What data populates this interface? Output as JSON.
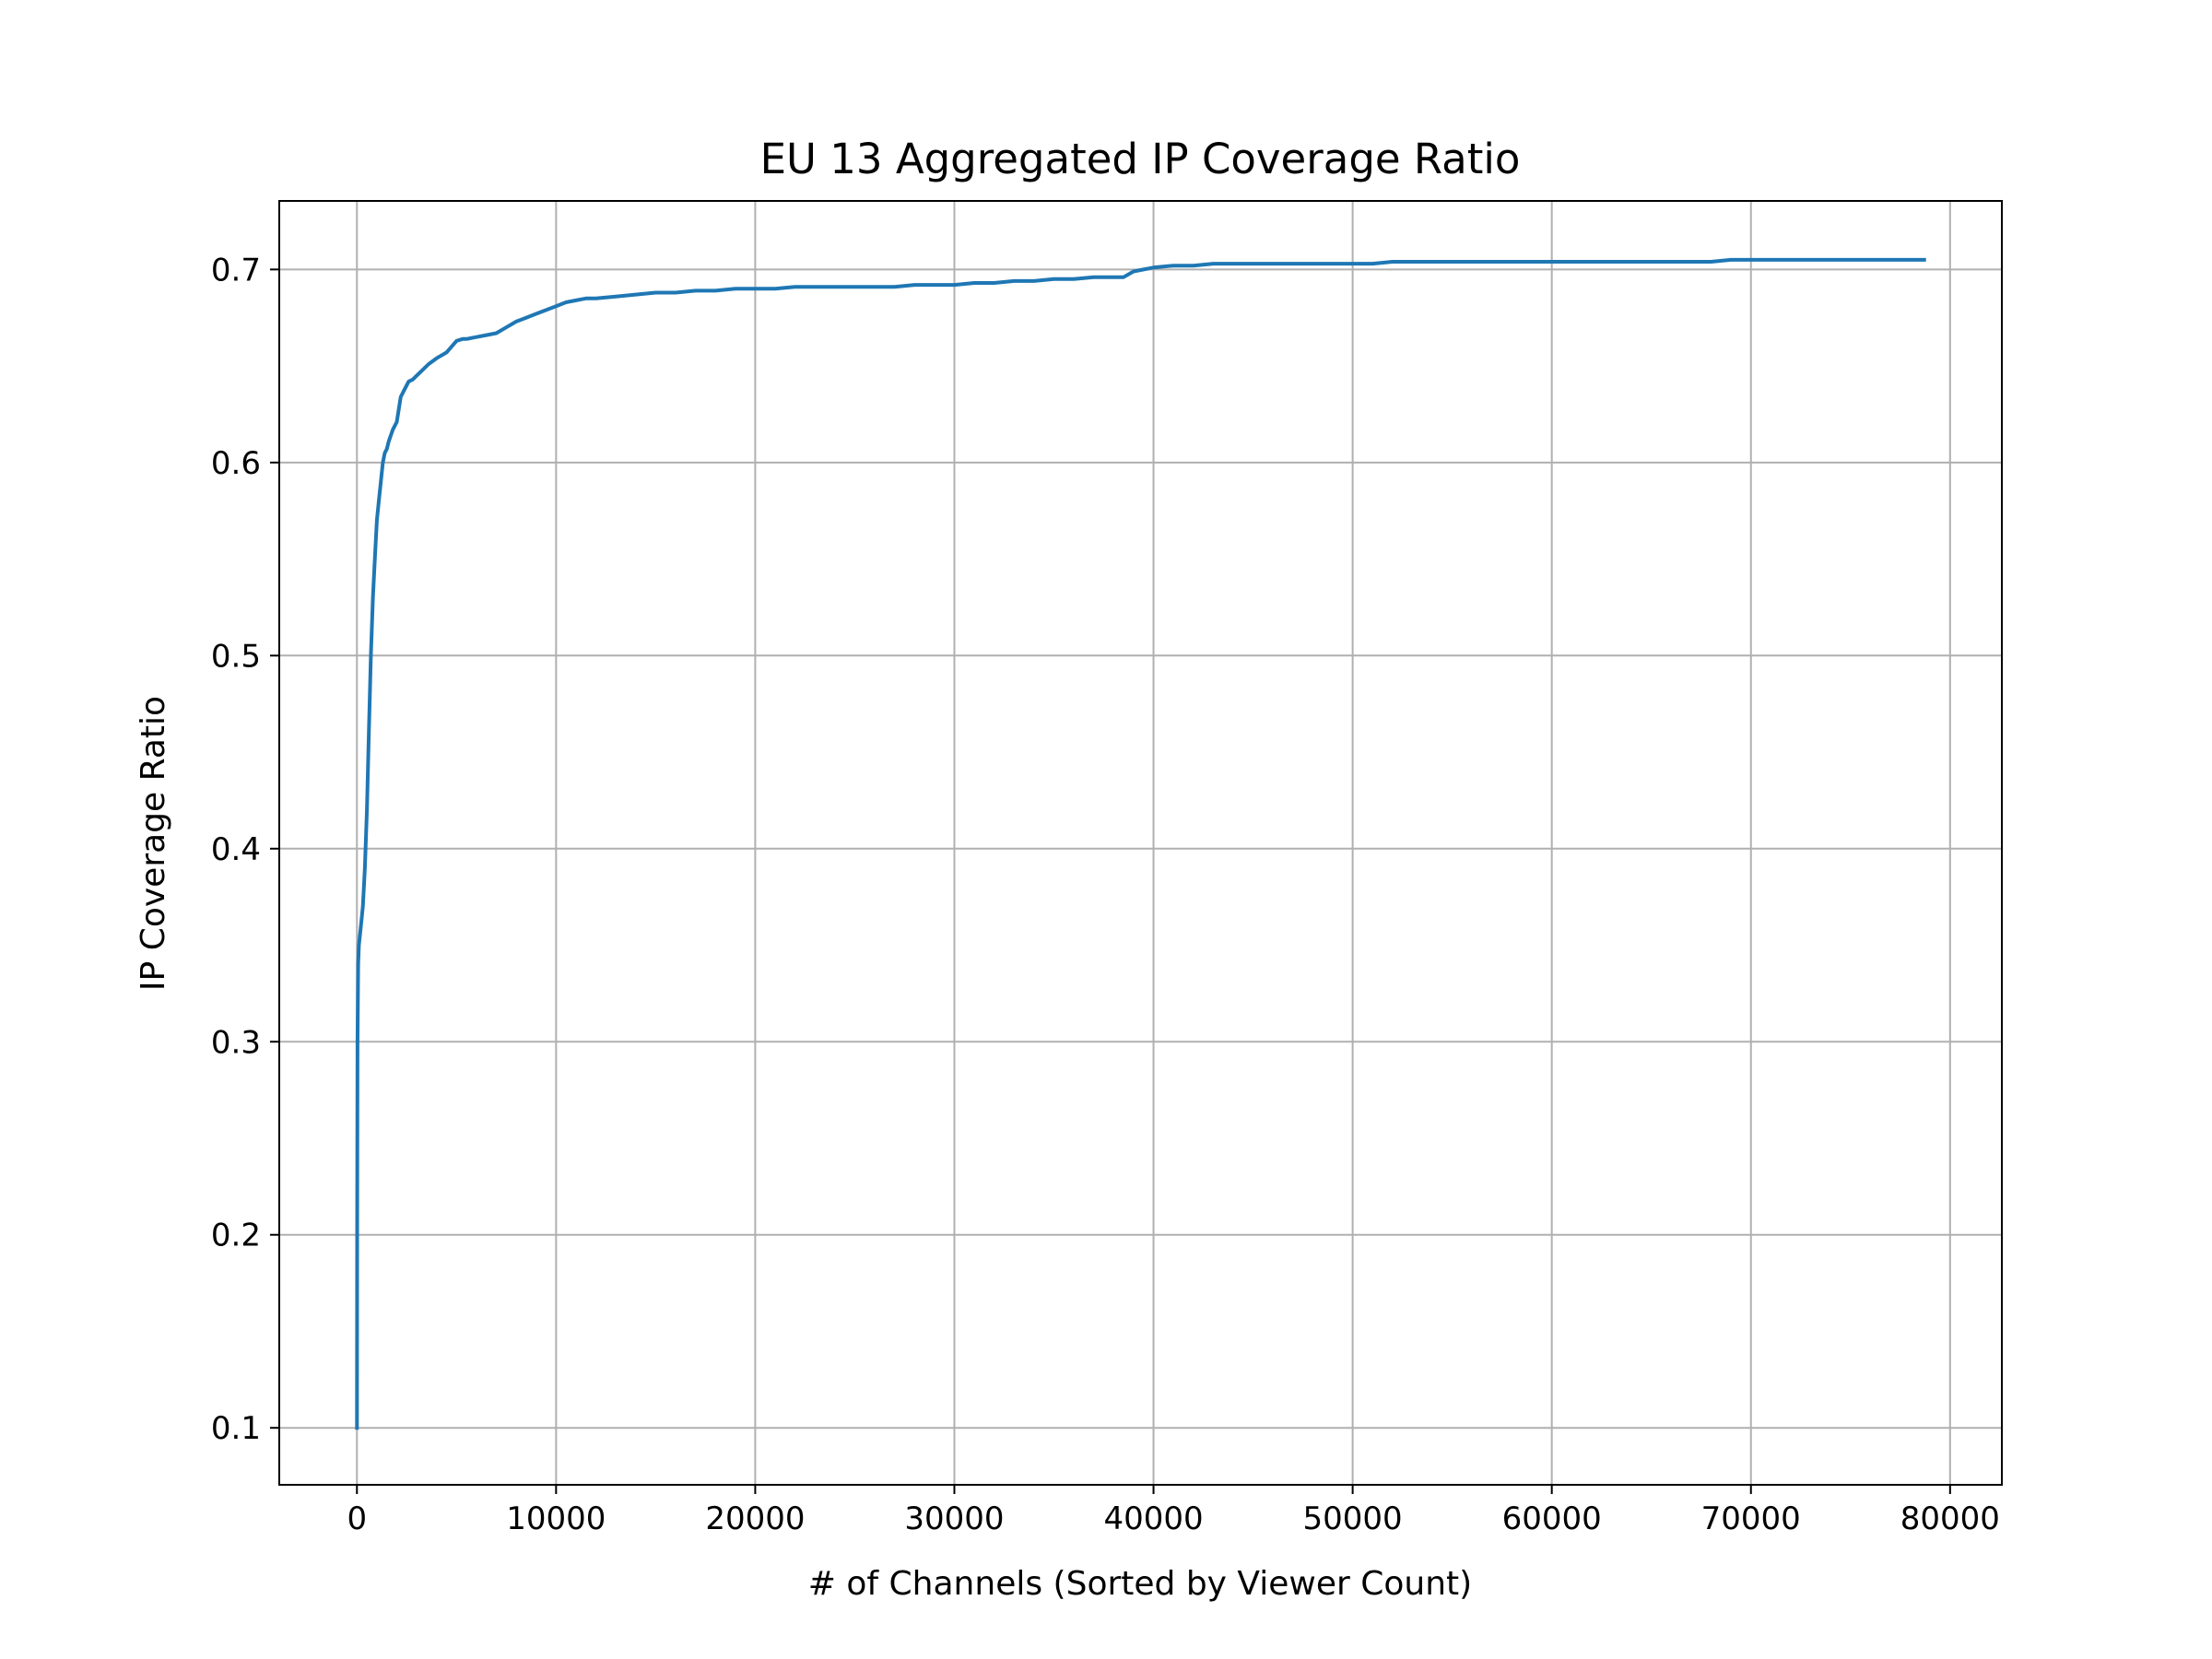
{
  "chart_data": {
    "type": "line",
    "title": "EU 13 Aggregated IP Coverage Ratio",
    "xlabel": "# of Channels (Sorted by Viewer Count)",
    "ylabel": "IP Coverage Ratio",
    "xlim": [
      -3900,
      82600
    ],
    "ylim": [
      0.0705,
      0.7355
    ],
    "xticks": [
      0,
      10000,
      20000,
      30000,
      40000,
      50000,
      60000,
      70000,
      80000
    ],
    "yticks": [
      0.1,
      0.2,
      0.3,
      0.4,
      0.5,
      0.6,
      0.7
    ],
    "xtick_labels": [
      "0",
      "10000",
      "20000",
      "30000",
      "40000",
      "50000",
      "60000",
      "70000",
      "80000"
    ],
    "ytick_labels": [
      "0.1",
      "0.2",
      "0.3",
      "0.4",
      "0.5",
      "0.6",
      "0.7"
    ],
    "grid": true,
    "colors": {
      "line": "#1f77b4",
      "grid": "#b0b0b0",
      "axes": "#000000"
    },
    "series": [
      {
        "x": [
          0,
          10,
          30,
          60,
          100,
          150,
          200,
          300,
          400,
          500,
          600,
          700,
          800,
          900,
          1000,
          1100,
          1200,
          1300,
          1400,
          1500,
          1600,
          1800,
          2000,
          2200,
          2400,
          2600,
          2800,
          3000,
          3300,
          3600,
          4000,
          4500,
          5000,
          5300,
          5500,
          6000,
          6500,
          7000,
          7500,
          8000,
          8500,
          9000,
          9500,
          10000,
          10500,
          11000,
          11500,
          12000,
          13000,
          14000,
          15000,
          16000,
          17000,
          18000,
          19000,
          20000,
          21000,
          22000,
          23000,
          25000,
          27000,
          28000,
          30000,
          31000,
          32000,
          33000,
          34000,
          35000,
          36000,
          37000,
          38000,
          38500,
          39000,
          39500,
          40000,
          41000,
          42000,
          43000,
          45000,
          48000,
          51000,
          52000,
          55000,
          60000,
          65000,
          68000,
          69000,
          72000,
          75000,
          76000,
          78700
        ],
        "y": [
          0.1,
          0.2,
          0.3,
          0.34,
          0.35,
          0.355,
          0.36,
          0.37,
          0.39,
          0.42,
          0.46,
          0.5,
          0.53,
          0.55,
          0.57,
          0.58,
          0.59,
          0.6,
          0.605,
          0.607,
          0.611,
          0.617,
          0.621,
          0.634,
          0.638,
          0.642,
          0.643,
          0.645,
          0.648,
          0.651,
          0.654,
          0.657,
          0.663,
          0.664,
          0.664,
          0.665,
          0.666,
          0.667,
          0.67,
          0.673,
          0.675,
          0.677,
          0.679,
          0.681,
          0.683,
          0.684,
          0.685,
          0.685,
          0.686,
          0.687,
          0.688,
          0.688,
          0.689,
          0.689,
          0.69,
          0.69,
          0.69,
          0.691,
          0.691,
          0.691,
          0.691,
          0.692,
          0.692,
          0.693,
          0.693,
          0.694,
          0.694,
          0.695,
          0.695,
          0.696,
          0.696,
          0.696,
          0.699,
          0.7,
          0.701,
          0.702,
          0.702,
          0.703,
          0.703,
          0.703,
          0.703,
          0.704,
          0.704,
          0.704,
          0.704,
          0.704,
          0.705,
          0.705,
          0.705,
          0.705,
          0.705
        ]
      }
    ]
  }
}
